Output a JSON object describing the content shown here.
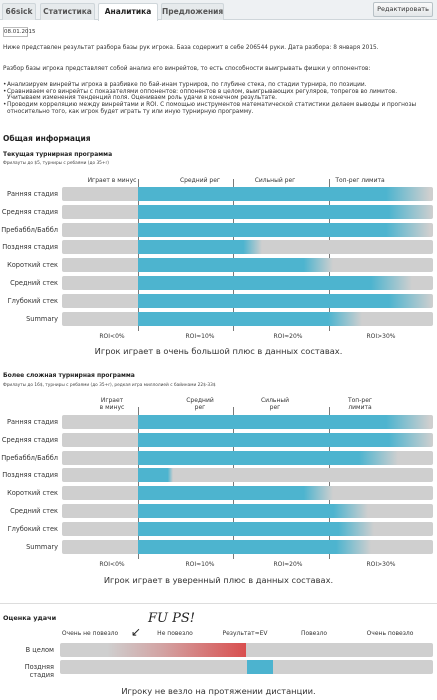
{
  "tabs": [
    {
      "label": "66sick"
    },
    {
      "label": "Статистика"
    },
    {
      "label": "Аналитика",
      "active": true
    },
    {
      "label": "Предложения"
    }
  ],
  "edit_button": "Редактировать",
  "date": "08.01.2015",
  "intro": "Ниже представлен результат разбора базы рук игрока. База содержит в себе 206544 руки. Дата разбора: 8 января 2015.",
  "method": "Разбор базы игрока представляет собой анализ его винрейтов, то есть способности выигрывать фишки у оппонентов:",
  "bullets": [
    "Анализируем винрейты игрока в разбивке по бай-инам турниров, по глубине стека, по стадии турнира, по позиции.",
    "Сравниваем его винрейты с показателями оппонентов: оппонентов в целом, выигрывающих регуляров, топрегов во лимитов. Учитываем изменения тенденций поля. Оцениваем роль удачи в конечном результате.",
    "Проводим корреляцию между винрейтами и ROI. С помощью инструментов математической статистики делаем выводы и прогнозы относительно того, как игрок будет играть ту или иную турнирную программу."
  ],
  "general_title": "Общая информация",
  "program1": {
    "title": "Текущая турнирная программа",
    "note": "Фрилауты до $5, турниры с ребаями (до 35+r)",
    "headers": [
      "Играет в минус",
      "Средний рег",
      "Сильный рег",
      "Топ-рег лимита"
    ],
    "rows": [
      {
        "label": "Ранняя стадия",
        "level": 0.99
      },
      {
        "label": "Средняя стадия",
        "level": 1.0
      },
      {
        "label": "Пребаббл/Баббл",
        "level": 0.99
      },
      {
        "label": "Поздняя стадия",
        "level": 0.42
      },
      {
        "label": "Короткий стек",
        "level": 0.66
      },
      {
        "label": "Средний стек",
        "level": 0.93
      },
      {
        "label": "Глубокий стек",
        "level": 1.0
      },
      {
        "label": "Summary",
        "level": 0.76
      }
    ],
    "roi_labels": [
      "ROI<0%",
      "ROI≈10%",
      "ROI≈20%",
      "ROI>30%"
    ],
    "summary": "Игрок играет в очень большой плюс в данных составах."
  },
  "program2": {
    "title": "Более сложная турнирная программа",
    "note": "Фрилауты до 16$, турниры с ребаями (до 35+r), редкая игра миллолией с байинами 22$-33$",
    "headers": [
      "Играет\nв минус",
      "Средний\nрег",
      "Сильный\nрег",
      "Топ-рег\nлимита"
    ],
    "rows": [
      {
        "label": "Ранняя стадия",
        "level": 0.99
      },
      {
        "label": "Средняя стадия",
        "level": 1.0
      },
      {
        "label": "Пребаббл/Баббл",
        "level": 0.88
      },
      {
        "label": "Поздняя стадия",
        "level": 0.12
      },
      {
        "label": "Короткий стек",
        "level": 0.66
      },
      {
        "label": "Средний стек",
        "level": 0.78
      },
      {
        "label": "Глубокий стек",
        "level": 0.8
      },
      {
        "label": "Summary",
        "level": 0.79
      }
    ],
    "roi_labels": [
      "ROI<0%",
      "ROI≈10%",
      "ROI≈20%",
      "ROI>30%"
    ],
    "summary": "Игрок играет в уверенный плюс в данных составах."
  },
  "luck": {
    "title": "Оценка удачи",
    "headers": [
      "Очень не повезло",
      "Не повезло",
      "Результат≈EV",
      "Повезло",
      "Очень повезло"
    ],
    "handwriting": "FU PS!",
    "rows": [
      {
        "label": "В целом",
        "from": 0.42,
        "to": 0.5,
        "color": "#d94f4f"
      },
      {
        "label": "Поздняя стадия",
        "from": 0.5,
        "to": 0.57,
        "color": "#4cb3cf"
      }
    ],
    "summary": "Игроку не везло на протяжении дистанции."
  },
  "colors": {
    "fill": "#4db4cf",
    "track": "#cfcfcf",
    "bad_luck": "#d94f4f"
  }
}
